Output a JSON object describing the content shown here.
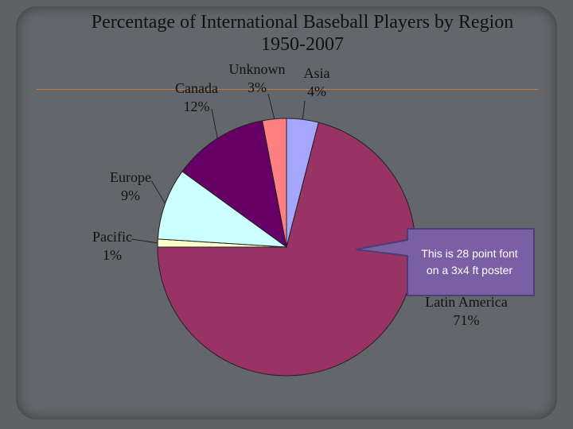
{
  "colors": {
    "background": "#5f6265",
    "callout_fill": "#7a5fa4",
    "callout_border": "#4f3c73",
    "leader": "#222222"
  },
  "callout": {
    "line1": "This is 28 point font",
    "line2": "on a 3x4 ft poster"
  },
  "chart_data": {
    "type": "pie",
    "title": "Percentage of International Baseball Players by Region",
    "subtitle": "1950-2007",
    "slices": [
      {
        "name": "Asia",
        "value": 4,
        "label": "4%",
        "color": "#a6a6ff"
      },
      {
        "name": "Latin America",
        "value": 71,
        "label": "71%",
        "color": "#993366"
      },
      {
        "name": "Pacific",
        "value": 1,
        "label": "1%",
        "color": "#ffffcc"
      },
      {
        "name": "Europe",
        "value": 9,
        "label": "9%",
        "color": "#ccffff"
      },
      {
        "name": "Canada",
        "value": 12,
        "label": "12%",
        "color": "#660066"
      },
      {
        "name": "Unknown",
        "value": 3,
        "label": "3%",
        "color": "#ff8080"
      }
    ]
  }
}
